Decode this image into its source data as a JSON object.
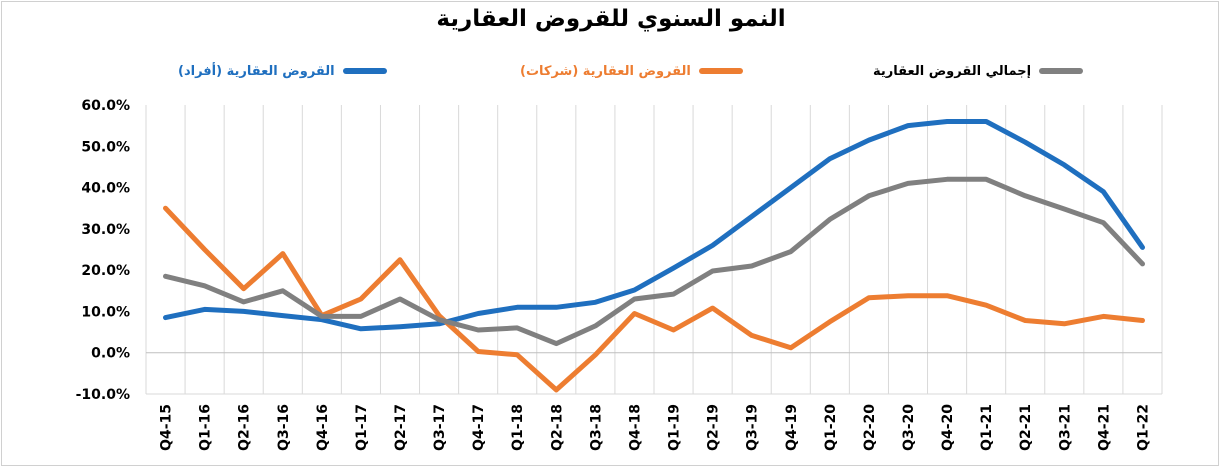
{
  "chart_data": {
    "type": "line",
    "title": "النمو السنوي للقروض العقارية",
    "categories": [
      "Q4-15",
      "Q1-16",
      "Q2-16",
      "Q3-16",
      "Q4-16",
      "Q1-17",
      "Q2-17",
      "Q3-17",
      "Q4-17",
      "Q1-18",
      "Q2-18",
      "Q3-18",
      "Q4-18",
      "Q1-19",
      "Q2-19",
      "Q3-19",
      "Q4-19",
      "Q1-20",
      "Q2-20",
      "Q3-20",
      "Q4-20",
      "Q1-21",
      "Q2-21",
      "Q3-21",
      "Q4-21",
      "Q1-22"
    ],
    "series": [
      {
        "name": "القروض العقارية (أفراد)",
        "color": "#1f6fbf",
        "values": [
          8.5,
          10.5,
          10.0,
          9.0,
          8.0,
          5.8,
          6.3,
          7.0,
          9.5,
          11.0,
          11.0,
          12.2,
          15.2,
          20.5,
          26.0,
          33.0,
          40.0,
          47.0,
          51.5,
          55.0,
          56.0,
          56.0,
          51.0,
          45.5,
          39.0,
          25.5
        ]
      },
      {
        "name": "القروض العقارية (شركات)",
        "color": "#ed7d31",
        "values": [
          35.0,
          25.0,
          15.5,
          24.0,
          9.0,
          13.0,
          22.5,
          9.0,
          0.3,
          -0.5,
          -9.0,
          -0.5,
          9.5,
          5.5,
          10.8,
          4.2,
          1.2,
          7.5,
          13.3,
          13.8,
          13.8,
          11.5,
          7.8,
          7.0,
          8.8,
          7.8
        ]
      },
      {
        "name": "إجمالي القروض العقارية",
        "color": "#808080",
        "values": [
          18.5,
          16.2,
          12.3,
          15.0,
          8.8,
          8.8,
          13.0,
          8.0,
          5.5,
          6.0,
          2.2,
          6.5,
          13.0,
          14.2,
          19.8,
          21.0,
          24.5,
          32.3,
          38.0,
          41.0,
          42.0,
          42.0,
          38.0,
          34.8,
          31.5,
          21.5
        ]
      }
    ],
    "y_ticks": [
      "60.0%",
      "50.0%",
      "40.0%",
      "30.0%",
      "20.0%",
      "10.0%",
      "0.0%",
      "-10.0%"
    ],
    "ylim": [
      -10,
      60
    ],
    "grid": "vertical",
    "legend": "top"
  }
}
